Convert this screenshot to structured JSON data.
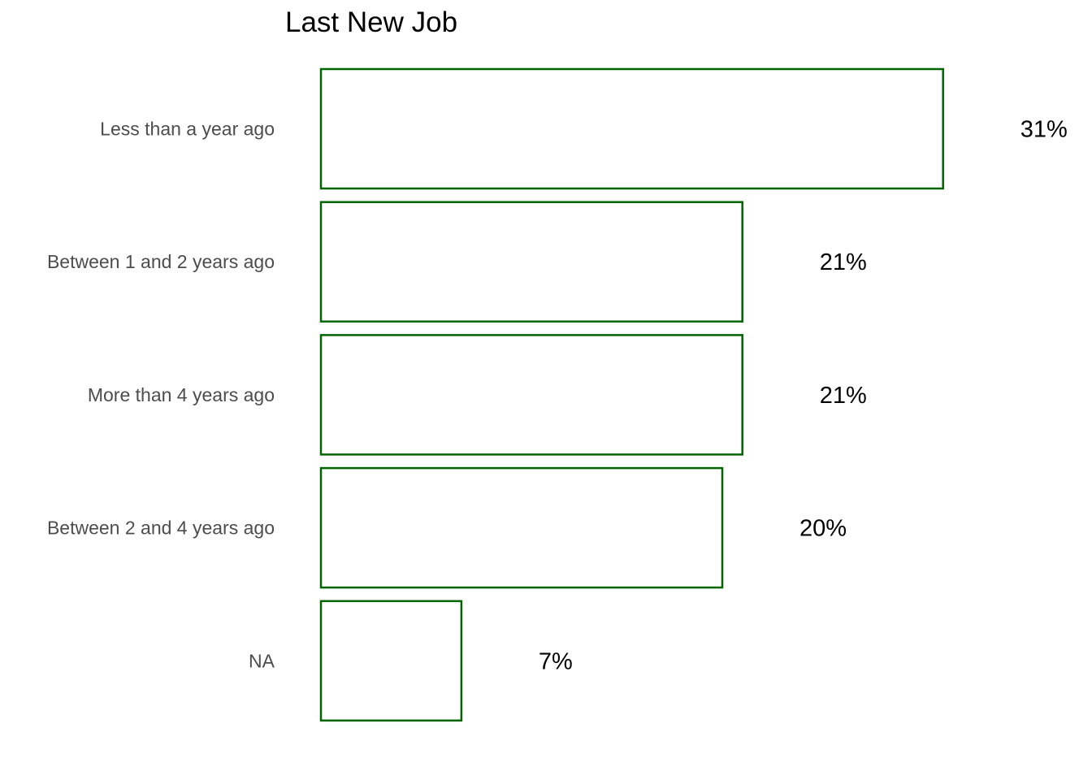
{
  "chart_data": {
    "type": "bar",
    "orientation": "horizontal",
    "title": "Last New Job",
    "xlabel": "",
    "ylabel": "",
    "categories": [
      "Less than a year ago",
      "Between 1 and 2 years ago",
      "More than 4 years ago",
      "Between 2 and 4 years ago",
      "NA"
    ],
    "values": [
      31,
      21,
      21,
      20,
      7
    ],
    "value_labels": [
      "31%",
      "21%",
      "21%",
      "20%",
      "7%"
    ],
    "unit": "%",
    "grid": false,
    "legend": "none",
    "bar_fill": "#ffffff",
    "bar_outline": "#006400"
  }
}
